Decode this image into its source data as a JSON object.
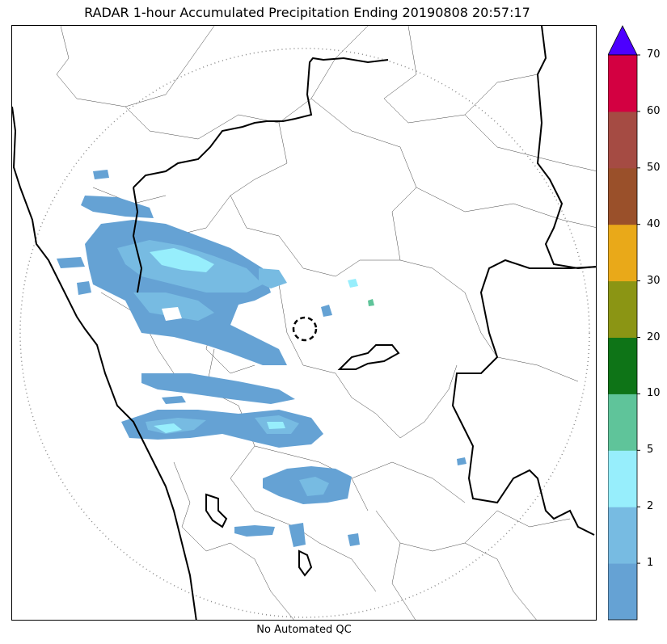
{
  "title": "RADAR 1-hour Accumulated Precipitation Ending 20190808 20:57:17",
  "caption": "No Automated QC",
  "colorbar": {
    "colors": [
      "#65a2d4",
      "#77bbe2",
      "#97eefc",
      "#5fc49a",
      "#0e7417",
      "#8b9514",
      "#e9a919",
      "#9a502a",
      "#a54b43",
      "#d30041"
    ],
    "extend_color": "#4c00ff",
    "tick_labels": [
      "1",
      "2",
      "5",
      "10",
      "20",
      "30",
      "40",
      "50",
      "60",
      "70"
    ]
  }
}
